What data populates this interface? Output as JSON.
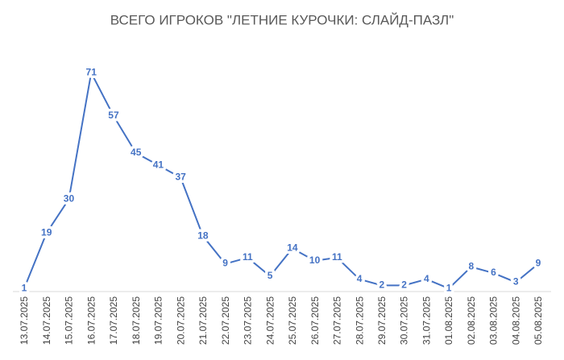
{
  "chart_data": {
    "type": "line",
    "title": "ВСЕГО ИГРОКОВ \"ЛЕТНИЕ КУРОЧКИ: СЛАЙД-ПАЗЛ\"",
    "categories": [
      "13.07.2025",
      "14.07.2025",
      "15.07.2025",
      "16.07.2025",
      "17.07.2025",
      "18.07.2025",
      "19.07.2025",
      "20.07.2025",
      "21.07.2025",
      "22.07.2025",
      "23.07.2025",
      "24.07.2025",
      "25.07.2025",
      "26.07.2025",
      "27.07.2025",
      "28.07.2025",
      "29.07.2025",
      "30.07.2025",
      "31.07.2025",
      "01.08.2025",
      "02.08.2025",
      "03.08.2025",
      "04.08.2025",
      "05.08.2025"
    ],
    "values": [
      1,
      19,
      30,
      71,
      57,
      45,
      41,
      37,
      18,
      9,
      11,
      5,
      14,
      10,
      11,
      4,
      2,
      2,
      4,
      1,
      8,
      6,
      3,
      9
    ],
    "color": "#4472c4",
    "ylim": [
      0,
      80
    ]
  }
}
